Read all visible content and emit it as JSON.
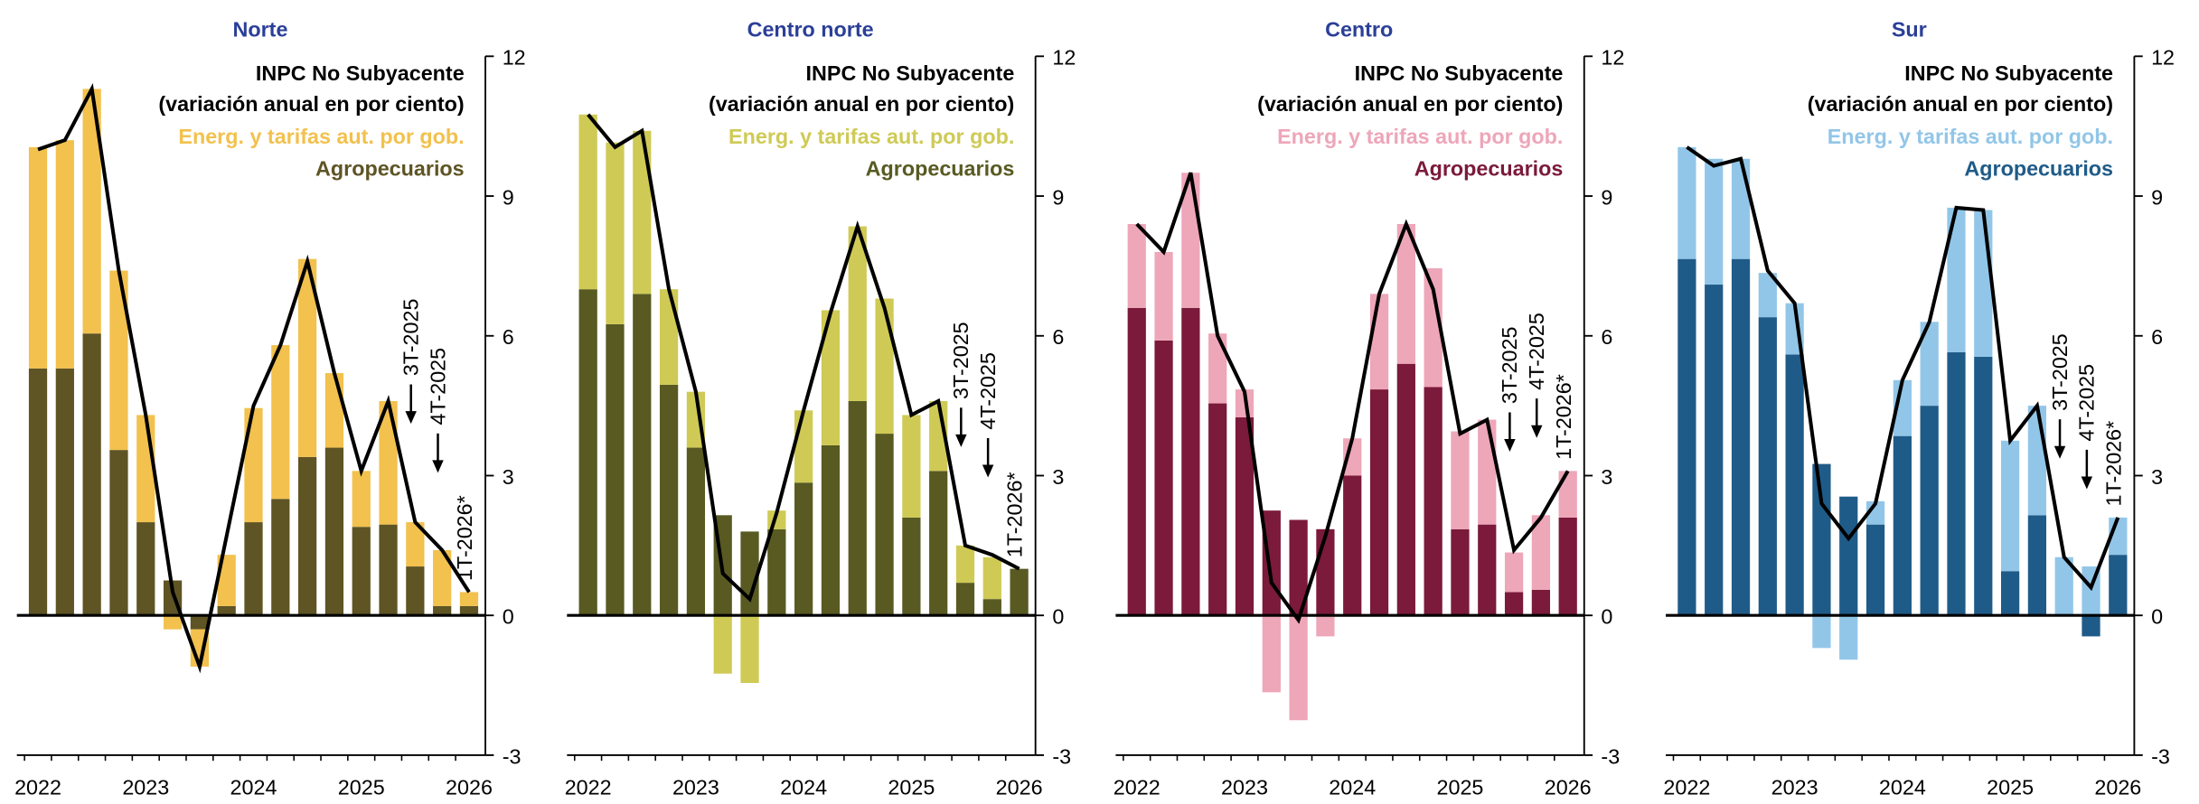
{
  "chart_data": [
    {
      "type": "bar",
      "title": "Norte",
      "legend_note": "(variación anual en por ciento)",
      "categories": [
        "2022",
        null,
        null,
        null,
        "2023",
        null,
        null,
        null,
        "2024",
        null,
        null,
        null,
        "2025",
        null,
        null,
        null,
        "2026"
      ],
      "series": [
        {
          "name": "Agropecuarios",
          "color": "#5e5424",
          "values": [
            5.3,
            5.3,
            6.05,
            3.55,
            2.0,
            0.75,
            -0.3,
            0.2,
            2.0,
            2.5,
            3.4,
            3.6,
            1.9,
            1.95,
            1.05,
            0.2,
            0.2
          ]
        },
        {
          "name": "Energ. y tarifas aut. por gob.",
          "color": "#f2c14e",
          "values": [
            4.75,
            4.9,
            5.25,
            3.85,
            2.3,
            -0.3,
            -0.8,
            1.1,
            2.45,
            3.3,
            4.25,
            1.6,
            1.2,
            2.65,
            0.95,
            1.2,
            0.3
          ]
        },
        {
          "name": "INPC No Subyacente",
          "type": "line",
          "color": "#000000",
          "values": [
            10.0,
            10.2,
            11.3,
            7.4,
            4.3,
            0.5,
            -1.1,
            1.7,
            4.5,
            5.8,
            7.6,
            5.2,
            3.1,
            4.6,
            2.0,
            1.4,
            0.5
          ]
        }
      ],
      "annotations": [
        "3T-2025",
        "4T-2025",
        "1T-2026*"
      ],
      "ylim": [
        -3,
        12
      ],
      "yticks": [
        -3,
        0,
        3,
        6,
        9,
        12
      ]
    },
    {
      "type": "bar",
      "title": "Centro norte",
      "legend_note": "(variación anual en por ciento)",
      "categories": [
        "2022",
        null,
        null,
        null,
        "2023",
        null,
        null,
        null,
        "2024",
        null,
        null,
        null,
        "2025",
        null,
        null,
        null,
        "2026"
      ],
      "series": [
        {
          "name": "Agropecuarios",
          "color": "#585a22",
          "values": [
            7.0,
            6.25,
            6.9,
            4.95,
            3.6,
            2.15,
            1.8,
            1.85,
            2.85,
            3.65,
            4.6,
            3.9,
            2.1,
            3.1,
            0.7,
            0.35,
            1.0
          ]
        },
        {
          "name": "Energ. y tarifas aut. por gob.",
          "color": "#cfca55",
          "values": [
            3.75,
            3.9,
            3.5,
            2.05,
            1.2,
            -1.25,
            -1.45,
            0.4,
            1.55,
            2.9,
            3.75,
            2.9,
            2.2,
            1.5,
            0.8,
            0.9,
            0
          ]
        },
        {
          "name": "INPC No Subyacente",
          "type": "line",
          "color": "#000000",
          "values": [
            10.75,
            10.05,
            10.4,
            7.0,
            4.8,
            0.9,
            0.35,
            2.2,
            4.4,
            6.5,
            8.35,
            6.6,
            4.3,
            4.6,
            1.5,
            1.3,
            1.0
          ]
        }
      ],
      "annotations": [
        "3T-2025",
        "4T-2025",
        "1T-2026*"
      ],
      "ylim": [
        -3,
        12
      ],
      "yticks": [
        -3,
        0,
        3,
        6,
        9,
        12
      ]
    },
    {
      "type": "bar",
      "title": "Centro",
      "legend_note": "(variación anual en por ciento)",
      "categories": [
        "2022",
        null,
        null,
        null,
        "2023",
        null,
        null,
        null,
        "2024",
        null,
        null,
        null,
        "2025",
        null,
        null,
        null,
        "2026"
      ],
      "series": [
        {
          "name": "Agropecuarios",
          "color": "#7b1a3a",
          "values": [
            6.6,
            5.9,
            6.6,
            4.55,
            4.25,
            2.25,
            2.05,
            1.85,
            3.0,
            4.85,
            5.4,
            4.9,
            1.85,
            1.95,
            0.5,
            0.55,
            2.1
          ]
        },
        {
          "name": "Energ. y tarifas aut. por gob.",
          "color": "#eea6b9",
          "values": [
            1.8,
            1.9,
            2.9,
            1.5,
            0.6,
            -1.65,
            -2.25,
            -0.45,
            0.8,
            2.05,
            3.0,
            2.55,
            2.1,
            2.25,
            0.85,
            1.6,
            1.0
          ]
        },
        {
          "name": "INPC No Subyacente",
          "type": "line",
          "color": "#000000",
          "values": [
            8.4,
            7.8,
            9.5,
            6.0,
            4.8,
            0.7,
            -0.1,
            1.7,
            3.8,
            6.9,
            8.4,
            7.0,
            3.9,
            4.2,
            1.4,
            2.1,
            3.1
          ]
        }
      ],
      "annotations": [
        "3T-2025",
        "4T-2025",
        "1T-2026*"
      ],
      "ylim": [
        -3,
        12
      ],
      "yticks": [
        -3,
        0,
        3,
        6,
        9,
        12
      ]
    },
    {
      "type": "bar",
      "title": "Sur",
      "legend_note": "(variación anual en por ciento)",
      "categories": [
        "2022",
        null,
        null,
        null,
        "2023",
        null,
        null,
        null,
        "2024",
        null,
        null,
        null,
        "2025",
        null,
        null,
        null,
        "2026"
      ],
      "series": [
        {
          "name": "Agropecuarios",
          "color": "#1f5b88",
          "values": [
            7.65,
            7.1,
            7.65,
            6.4,
            5.6,
            3.25,
            2.55,
            1.95,
            3.85,
            4.5,
            5.65,
            5.55,
            0.95,
            2.15,
            0,
            -0.45,
            1.3
          ]
        },
        {
          "name": "Energ. y tarifas aut. por gob.",
          "color": "#92c6e8",
          "values": [
            2.4,
            2.7,
            2.15,
            0.95,
            1.1,
            -0.7,
            -0.95,
            0.5,
            1.2,
            1.8,
            3.1,
            3.15,
            2.8,
            2.35,
            1.25,
            1.05,
            0.8
          ]
        },
        {
          "name": "INPC No Subyacente",
          "type": "line",
          "color": "#000000",
          "values": [
            10.05,
            9.65,
            9.8,
            7.4,
            6.7,
            2.4,
            1.65,
            2.4,
            5.05,
            6.3,
            8.75,
            8.7,
            3.75,
            4.5,
            1.25,
            0.6,
            2.1
          ]
        }
      ],
      "annotations": [
        "3T-2025",
        "4T-2025",
        "1T-2026*"
      ],
      "ylim": [
        -3,
        12
      ],
      "yticks": [
        -3,
        0,
        3,
        6,
        9,
        12
      ]
    }
  ]
}
